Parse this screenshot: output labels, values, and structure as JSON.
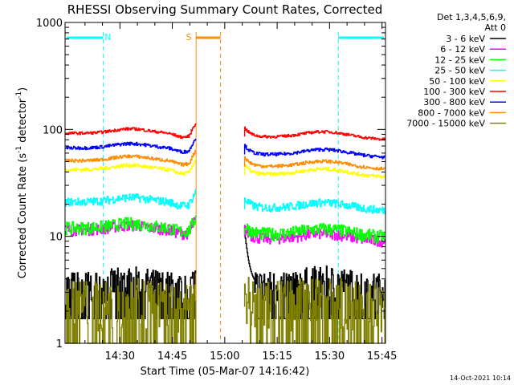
{
  "chart_data": {
    "type": "line",
    "title": "RHESSI Observing Summary Count Rates, Corrected",
    "xlabel": "Start Time (05-Mar-07 14:16:42)",
    "ylabel_main": "Corrected Count Rate (s",
    "ylabel_sup1": "-1",
    "ylabel_mid": " detector",
    "ylabel_sup2": "-1",
    "ylabel_end": ")",
    "y_scale": "log",
    "ylim": [
      1,
      1000
    ],
    "xlim_minutes": [
      14.3,
      106.0
    ],
    "x_ticks": [
      {
        "label": "14:30",
        "minute": 30
      },
      {
        "label": "14:45",
        "minute": 45
      },
      {
        "label": "15:00",
        "minute": 60
      },
      {
        "label": "15:15",
        "minute": 75
      },
      {
        "label": "15:30",
        "minute": 90
      },
      {
        "label": "15:45",
        "minute": 105
      }
    ],
    "y_ticks": [
      {
        "label": "1",
        "value": 1
      },
      {
        "label": "10",
        "value": 10
      },
      {
        "label": "100",
        "value": 100
      },
      {
        "label": "1000",
        "value": 1000
      }
    ],
    "legend_header": [
      "Det 1,3,4,5,6,9,",
      "Att 0"
    ],
    "legend_position": "right",
    "timestamp": "14-Oct-2021 10:14",
    "series": [
      {
        "name": "3 - 6 keV",
        "color": "#000000",
        "level_before": 3.5,
        "level_after": 3.5,
        "noise": 0.35,
        "floor": 1.7
      },
      {
        "name": "6 - 12 keV",
        "color": "#ff00ff",
        "level_before": 11.5,
        "level_after": 9.5,
        "noise": 0.12
      },
      {
        "name": "12 - 25 keV",
        "color": "#00ff00",
        "level_before": 12,
        "level_after": 10.5,
        "noise": 0.14
      },
      {
        "name": "25 - 50 keV",
        "color": "#00ffff",
        "level_before": 21,
        "level_after": 18.5,
        "noise": 0.09
      },
      {
        "name": "50 - 100 keV",
        "color": "#ffff00",
        "level_before": 42,
        "level_after": 38,
        "noise": 0.04
      },
      {
        "name": "100 - 300 keV",
        "color": "#ff0000",
        "level_before": 92,
        "level_after": 85,
        "noise": 0.03
      },
      {
        "name": "300 - 800 keV",
        "color": "#0000ff",
        "level_before": 67,
        "level_after": 58,
        "noise": 0.035
      },
      {
        "name": "800 - 7000 keV",
        "color": "#ff8c00",
        "level_before": 51,
        "level_after": 45,
        "noise": 0.035
      },
      {
        "name": "7000 - 15000 keV",
        "color": "#808000",
        "level_before": 2.5,
        "level_after": 2.5,
        "noise": 0.5,
        "floor": 1.0
      }
    ],
    "intervals": [
      {
        "label": "N",
        "start_minute": 14.3,
        "end_minute": 25.2,
        "color": "#00ffff"
      },
      {
        "label": "S",
        "start_minute": 51.8,
        "end_minute": 58.8,
        "color": "#ff8c00"
      },
      {
        "label": "N",
        "start_minute": 92.5,
        "end_minute": 106.0,
        "color": "#00ffff"
      }
    ],
    "gap_minutes": [
      51.8,
      65.5
    ]
  }
}
